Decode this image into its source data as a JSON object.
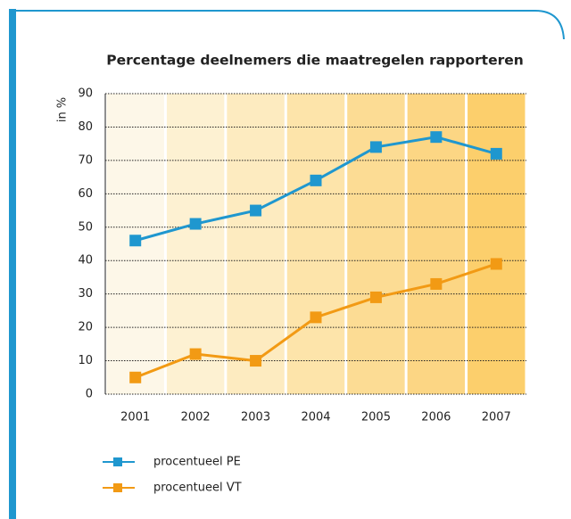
{
  "chart_data": {
    "type": "line",
    "title": "Percentage deelnemers die maatregelen rapporteren",
    "y_label": "in %",
    "categories": [
      "2001",
      "2002",
      "2003",
      "2004",
      "2005",
      "2006",
      "2007"
    ],
    "series": [
      {
        "name": "procentueel PE",
        "color": "#1f97cf",
        "values": [
          46,
          51,
          55,
          64,
          74,
          77,
          72
        ]
      },
      {
        "name": "procentueel VT",
        "color": "#f29a14",
        "values": [
          5,
          12,
          10,
          23,
          29,
          33,
          39
        ]
      }
    ],
    "ylim": [
      0,
      90
    ],
    "yticks": [
      0,
      10,
      20,
      30,
      40,
      50,
      60,
      70,
      80,
      90
    ],
    "grid": true,
    "legend": "bottom"
  }
}
